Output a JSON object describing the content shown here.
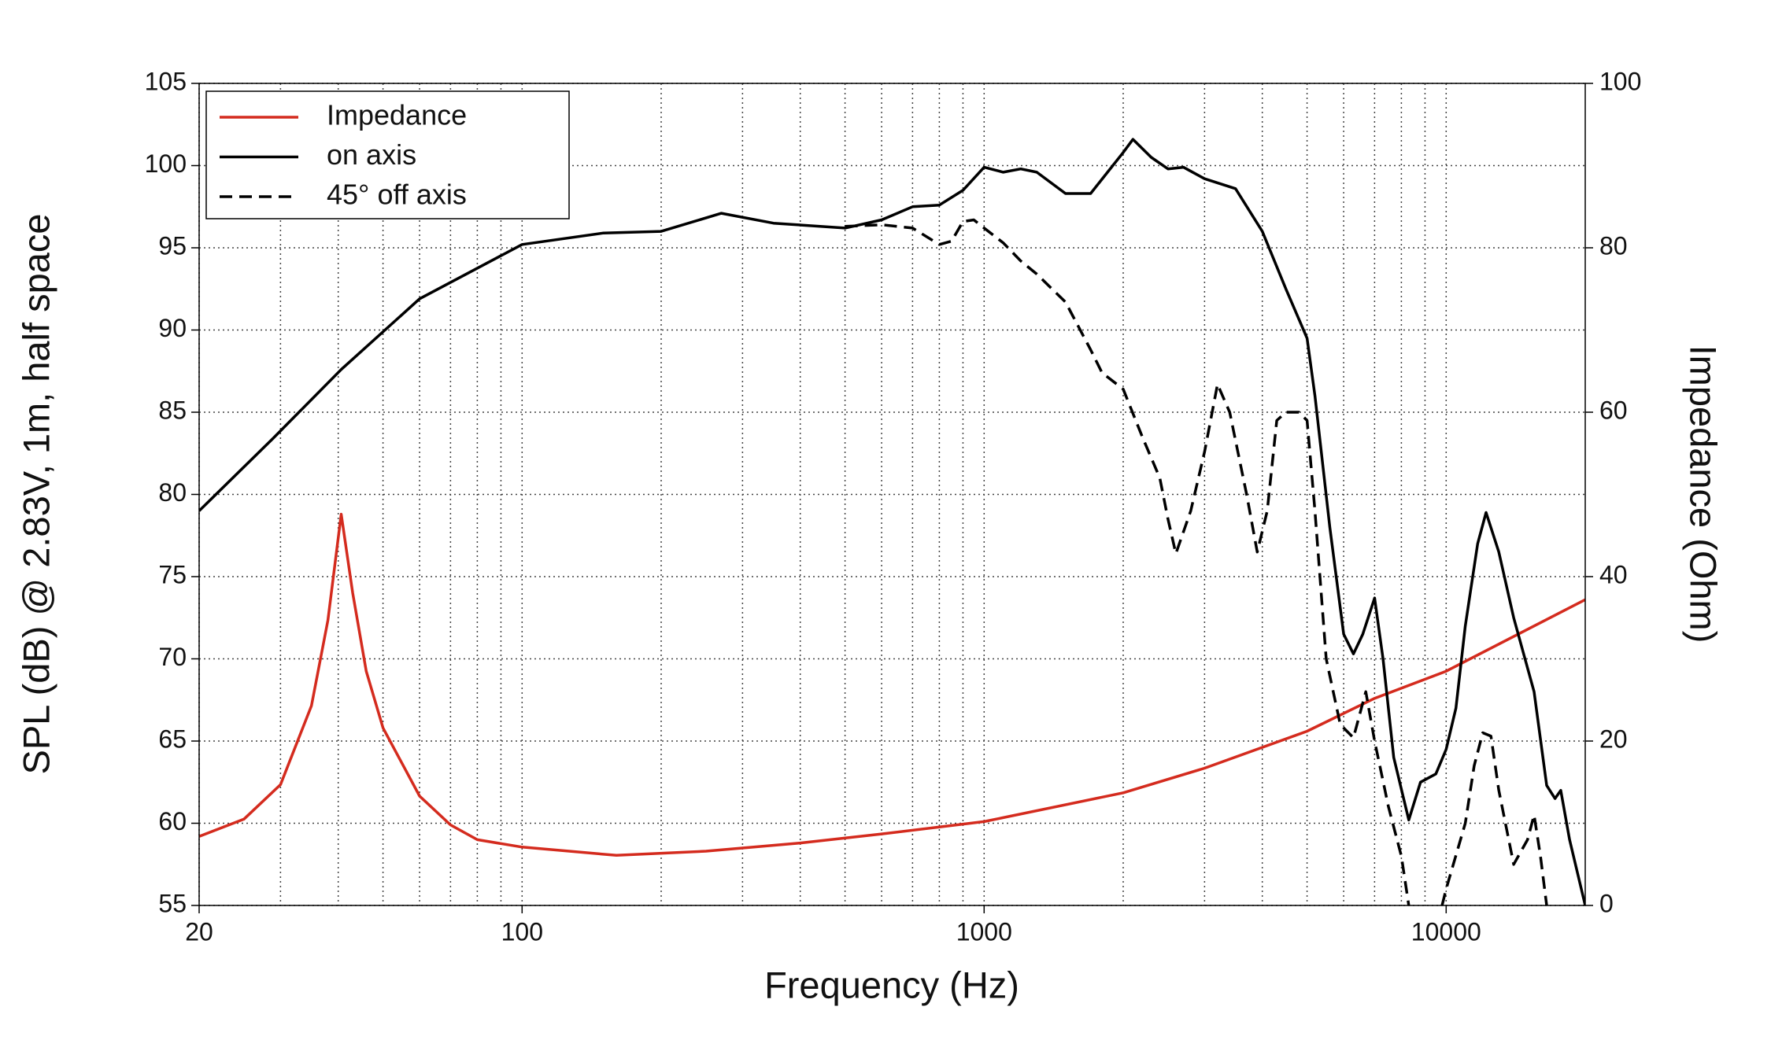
{
  "chart_data": {
    "type": "line",
    "xlabel": "Frequency (Hz)",
    "ylabel": "SPL (dB) @ 2.83V, 1m, half space",
    "y2label": "Impedance (Ohm)",
    "xscale": "log",
    "xlim": [
      20,
      20000
    ],
    "xticks": [
      20,
      100,
      1000,
      10000
    ],
    "xminor": [
      30,
      40,
      50,
      60,
      70,
      80,
      90,
      200,
      300,
      400,
      500,
      600,
      700,
      800,
      900,
      2000,
      3000,
      4000,
      5000,
      6000,
      7000,
      8000,
      9000
    ],
    "ylim": [
      55,
      105
    ],
    "yticks": [
      55,
      60,
      65,
      70,
      75,
      80,
      85,
      90,
      95,
      100,
      105
    ],
    "y2lim": [
      0,
      100
    ],
    "y2ticks": [
      0,
      20,
      40,
      60,
      80,
      100
    ],
    "grid": true,
    "legend": "upper left",
    "series": [
      {
        "name": "Impedance",
        "color": "#d42b1e",
        "style": "solid",
        "axis": "y2",
        "x": [
          20,
          25,
          30,
          35,
          38,
          40.6,
          43,
          46,
          50,
          60,
          70,
          80,
          100,
          160,
          250,
          400,
          600,
          1000,
          2000,
          3000,
          5000,
          7000,
          10000,
          20000
        ],
        "values": [
          8.4,
          10.5,
          14.7,
          24.3,
          34.7,
          47.6,
          38,
          28.5,
          21.6,
          13.3,
          9.8,
          8,
          7.1,
          6.1,
          6.6,
          7.6,
          8.7,
          10.2,
          13.7,
          16.7,
          21.2,
          25.2,
          28.5,
          37.2
        ]
      },
      {
        "name": "on axis",
        "color": "#000000",
        "style": "solid",
        "x": [
          20,
          28.9,
          40.6,
          60,
          100,
          150,
          200,
          270,
          350,
          500,
          600,
          700,
          800,
          900,
          1000,
          1100,
          1200,
          1300,
          1500,
          1700,
          2000,
          2100,
          2300,
          2500,
          2700,
          3000,
          3500,
          4000,
          4500,
          5000,
          5200,
          5600,
          6000,
          6300,
          6600,
          7000,
          7300,
          7700,
          8300,
          8800,
          9500,
          10000,
          10500,
          11000,
          11700,
          12200,
          13000,
          14000,
          15500,
          16500,
          17200,
          17700,
          18500,
          20000
        ],
        "values": [
          79,
          83.4,
          87.6,
          91.9,
          95.2,
          95.9,
          96,
          97.1,
          96.5,
          96.2,
          96.7,
          97.5,
          97.6,
          98.5,
          99.9,
          99.6,
          99.8,
          99.6,
          98.3,
          98.3,
          100.8,
          101.6,
          100.5,
          99.8,
          99.9,
          99.2,
          98.6,
          96,
          92.5,
          89.5,
          86,
          78,
          71.5,
          70.3,
          71.5,
          73.7,
          70,
          64,
          60.2,
          62.5,
          63,
          64.5,
          67,
          72,
          77,
          78.9,
          76.5,
          72.5,
          68,
          62.3,
          61.5,
          62,
          59,
          55
        ]
      },
      {
        "name": "45° off axis",
        "color": "#000000",
        "style": "dashed",
        "x": [
          500,
          600,
          700,
          800,
          850,
          900,
          950,
          1000,
          1100,
          1200,
          1300,
          1500,
          1700,
          1800,
          2000,
          2200,
          2400,
          2500,
          2600,
          2800,
          3000,
          3200,
          3400,
          3700,
          3900,
          4100,
          4300,
          4500,
          4800,
          5000,
          5200,
          5500,
          5900,
          6300,
          6700,
          7000,
          7500,
          8000,
          8300,
          9000,
          9800,
          10000,
          11000,
          11500,
          12000,
          12500,
          13000,
          14000,
          15000,
          15500,
          16000,
          16500
        ],
        "values": [
          96.3,
          96.4,
          96.2,
          95.2,
          95.4,
          96.6,
          96.7,
          96.2,
          95.3,
          94.2,
          93.4,
          91.7,
          88.8,
          87.4,
          86.4,
          83.5,
          81,
          78.5,
          76.4,
          79,
          82.6,
          86.7,
          85,
          80,
          76.5,
          79,
          84.5,
          85,
          85,
          84.5,
          79,
          70,
          66,
          65.2,
          68,
          65,
          61,
          58,
          55,
          null,
          55,
          56,
          60,
          63.5,
          65.5,
          65.3,
          62,
          57.5,
          59,
          60.5,
          58,
          55
        ]
      }
    ]
  }
}
